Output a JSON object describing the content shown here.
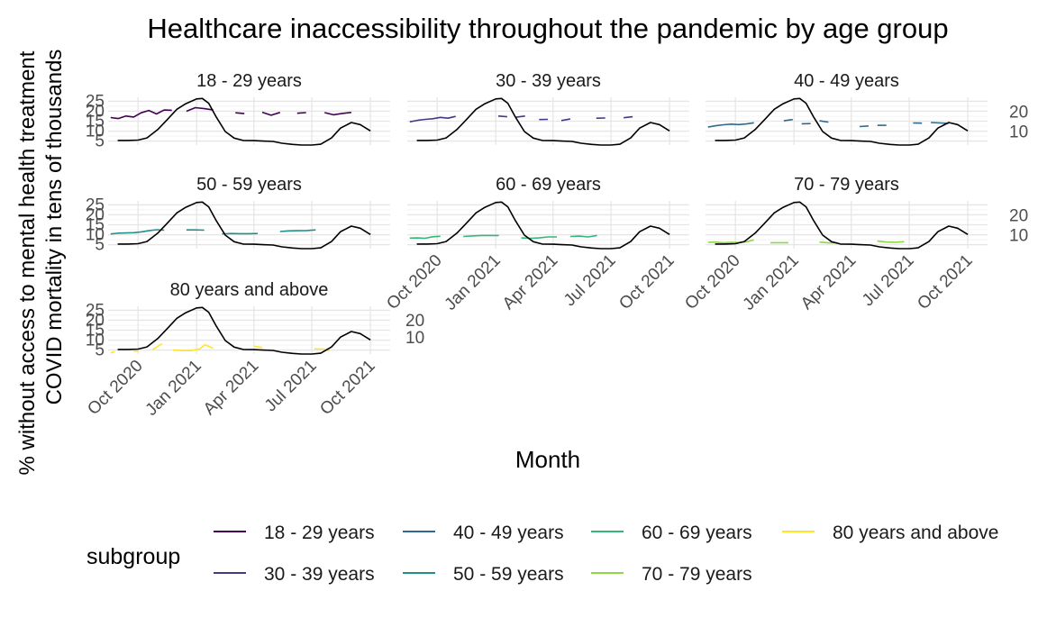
{
  "chart_data": {
    "type": "line",
    "title": "Healthcare inaccessibility throughout the pandemic by age group",
    "xlabel": "Month",
    "ylabel": "% without access to mental health treatment",
    "ylabel_secondary": "COVID mortality in tens of thousands",
    "x_ticks": [
      "Oct 2020",
      "Jan 2021",
      "Apr 2021",
      "Jul 2021",
      "Oct 2021"
    ],
    "y_ticks_left": [
      "5",
      "10",
      "15",
      "20",
      "25"
    ],
    "y_ticks_right": [
      "10",
      "20"
    ],
    "xlim": [
      "2020-08-15",
      "2021-11-01"
    ],
    "ylim": [
      3,
      27
    ],
    "legend_title": "subgroup",
    "legend_position": "bottom",
    "series": [
      {
        "name": "18 - 29 years",
        "color": "#440154",
        "segments": [
          [
            [
              "2020-08-19",
              16.8
            ],
            [
              "2020-08-31",
              16.3
            ],
            [
              "2020-09-12",
              17.6
            ],
            [
              "2020-09-24",
              17.1
            ],
            [
              "2020-10-06",
              19.2
            ],
            [
              "2020-10-18",
              20.4
            ],
            [
              "2020-10-30",
              18.6
            ],
            [
              "2020-11-11",
              20.6
            ],
            [
              "2020-11-23",
              20.5
            ]
          ],
          [
            [
              "2020-12-16",
              20.0
            ],
            [
              "2020-12-30",
              21.8
            ],
            [
              "2021-01-13",
              21.3
            ],
            [
              "2021-01-27",
              20.6
            ]
          ],
          [
            [
              "2021-03-03",
              19.2
            ],
            [
              "2021-03-17",
              18.8
            ]
          ],
          [
            [
              "2021-04-14",
              19.5
            ],
            [
              "2021-04-28",
              18.0
            ],
            [
              "2021-05-12",
              19.4
            ]
          ],
          [
            [
              "2021-06-08",
              19.0
            ],
            [
              "2021-06-22",
              19.3
            ]
          ],
          [
            [
              "2021-07-21",
              19.3
            ],
            [
              "2021-08-04",
              18.2
            ],
            [
              "2021-08-18",
              18.9
            ],
            [
              "2021-09-01",
              19.4
            ]
          ]
        ]
      },
      {
        "name": "30 - 39 years",
        "color": "#443983",
        "segments": [
          [
            [
              "2020-08-19",
              14.7
            ],
            [
              "2020-08-31",
              15.4
            ],
            [
              "2020-09-12",
              15.9
            ],
            [
              "2020-09-24",
              16.2
            ],
            [
              "2020-10-06",
              16.9
            ],
            [
              "2020-10-18",
              16.5
            ],
            [
              "2020-10-30",
              17.4
            ]
          ],
          [
            [
              "2021-01-05",
              17.6
            ],
            [
              "2021-01-19",
              17.2
            ]
          ],
          [
            [
              "2021-02-02",
              17.0
            ],
            [
              "2021-02-16",
              17.6
            ]
          ],
          [
            [
              "2021-03-10",
              15.8
            ],
            [
              "2021-03-24",
              15.9
            ]
          ],
          [
            [
              "2021-04-14",
              15.3
            ],
            [
              "2021-04-28",
              16.1
            ]
          ],
          [
            [
              "2021-06-08",
              16.5
            ],
            [
              "2021-06-22",
              16.6
            ]
          ],
          [
            [
              "2021-07-21",
              16.7
            ],
            [
              "2021-08-04",
              17.2
            ]
          ]
        ]
      },
      {
        "name": "40 - 49 years",
        "color": "#31688e",
        "segments": [
          [
            [
              "2020-08-19",
              12.0
            ],
            [
              "2020-08-31",
              12.7
            ],
            [
              "2020-09-12",
              13.2
            ],
            [
              "2020-09-24",
              13.5
            ],
            [
              "2020-10-06",
              13.3
            ],
            [
              "2020-10-18",
              13.6
            ],
            [
              "2020-10-30",
              14.2
            ]
          ],
          [
            [
              "2020-12-16",
              15.2
            ],
            [
              "2020-12-30",
              15.8
            ]
          ],
          [
            [
              "2021-01-13",
              13.7
            ],
            [
              "2021-01-27",
              13.8
            ]
          ],
          [
            [
              "2021-02-10",
              15.2
            ],
            [
              "2021-02-24",
              14.5
            ]
          ],
          [
            [
              "2021-04-14",
              12.3
            ],
            [
              "2021-04-28",
              12.6
            ]
          ],
          [
            [
              "2021-05-12",
              12.9
            ],
            [
              "2021-05-26",
              12.9
            ]
          ],
          [
            [
              "2021-07-07",
              14.1
            ],
            [
              "2021-07-21",
              14.0
            ]
          ],
          [
            [
              "2021-08-04",
              14.3
            ],
            [
              "2021-08-18",
              14.1
            ],
            [
              "2021-09-01",
              13.9
            ]
          ]
        ]
      },
      {
        "name": "50 - 59 years",
        "color": "#21908c",
        "segments": [
          [
            [
              "2020-08-19",
              10.4
            ],
            [
              "2020-08-31",
              10.8
            ],
            [
              "2020-09-12",
              10.9
            ],
            [
              "2020-09-24",
              11.0
            ],
            [
              "2020-10-06",
              11.4
            ],
            [
              "2020-10-18",
              12.0
            ],
            [
              "2020-10-30",
              12.5
            ],
            [
              "2020-11-11",
              12.3
            ]
          ],
          [
            [
              "2020-12-16",
              12.4
            ],
            [
              "2020-12-30",
              12.4
            ],
            [
              "2021-01-13",
              12.3
            ]
          ],
          [
            [
              "2021-02-10",
              10.4
            ],
            [
              "2021-02-24",
              10.6
            ],
            [
              "2021-03-10",
              10.5
            ],
            [
              "2021-03-24",
              10.5
            ],
            [
              "2021-04-07",
              10.6
            ]
          ],
          [
            [
              "2021-05-12",
              11.6
            ],
            [
              "2021-05-26",
              11.9
            ],
            [
              "2021-06-09",
              12.0
            ],
            [
              "2021-06-23",
              12.1
            ],
            [
              "2021-07-07",
              12.4
            ]
          ]
        ]
      },
      {
        "name": "60 - 69 years",
        "color": "#35b779",
        "segments": [
          [
            [
              "2020-08-19",
              8.3
            ],
            [
              "2020-08-31",
              8.4
            ],
            [
              "2020-09-12",
              8.2
            ],
            [
              "2020-09-24",
              9.0
            ],
            [
              "2020-10-06",
              9.2
            ]
          ],
          [
            [
              "2020-11-11",
              9.1
            ],
            [
              "2020-11-25",
              9.4
            ],
            [
              "2020-12-09",
              9.6
            ],
            [
              "2020-12-23",
              9.6
            ],
            [
              "2021-01-06",
              9.6
            ]
          ],
          [
            [
              "2021-02-10",
              8.4
            ],
            [
              "2021-02-24",
              8.2
            ],
            [
              "2021-03-10",
              8.4
            ],
            [
              "2021-03-24",
              8.9
            ],
            [
              "2021-04-07",
              8.9
            ]
          ],
          [
            [
              "2021-04-28",
              9.1
            ],
            [
              "2021-05-12",
              9.3
            ],
            [
              "2021-05-26",
              8.9
            ],
            [
              "2021-06-09",
              9.6
            ]
          ]
        ]
      },
      {
        "name": "70 - 79 years",
        "color": "#8fd744",
        "segments": [
          [
            [
              "2020-08-19",
              6.2
            ],
            [
              "2020-08-31",
              6.3
            ],
            [
              "2020-09-12",
              6.0
            ],
            [
              "2020-09-24",
              6.2
            ],
            [
              "2020-10-06",
              6.1
            ],
            [
              "2020-10-18",
              6.4
            ],
            [
              "2020-10-30",
              7.4
            ]
          ],
          [
            [
              "2020-11-25",
              6.0
            ],
            [
              "2020-12-09",
              6.0
            ],
            [
              "2020-12-23",
              6.0
            ]
          ],
          [
            [
              "2021-02-10",
              6.3
            ],
            [
              "2021-02-24",
              5.9
            ],
            [
              "2021-03-10",
              6.0
            ]
          ],
          [
            [
              "2021-05-12",
              6.8
            ],
            [
              "2021-05-26",
              6.3
            ],
            [
              "2021-06-09",
              6.2
            ],
            [
              "2021-06-23",
              6.5
            ]
          ]
        ]
      },
      {
        "name": "80 years and above",
        "color": "#fde725",
        "segments": [
          [
            [
              "2020-08-19",
              3.5
            ],
            [
              "2020-08-25",
              4.2
            ]
          ],
          [
            [
              "2020-09-24",
              4.5
            ],
            [
              "2020-10-02",
              4.5
            ]
          ],
          [
            [
              "2020-10-24",
              5.3
            ],
            [
              "2020-11-08",
              8.2
            ]
          ],
          [
            [
              "2020-11-25",
              5.0
            ],
            [
              "2020-12-09",
              4.7
            ],
            [
              "2020-12-23",
              4.7
            ],
            [
              "2021-01-06",
              5.6
            ],
            [
              "2021-01-14",
              7.6
            ],
            [
              "2021-01-27",
              6.0
            ]
          ],
          [
            [
              "2021-04-02",
              6.8
            ],
            [
              "2021-04-14",
              6.3
            ]
          ],
          [
            [
              "2021-07-05",
              5.6
            ],
            [
              "2021-07-19",
              5.5
            ],
            [
              "2021-07-29",
              4.6
            ]
          ]
        ]
      }
    ],
    "mortality_series": {
      "name": "COVID mortality",
      "color": "#000000",
      "points": [
        [
          "2020-08-30",
          5.3
        ],
        [
          "2020-09-15",
          5.3
        ],
        [
          "2020-10-01",
          5.5
        ],
        [
          "2020-10-15",
          6.6
        ],
        [
          "2020-11-01",
          10.8
        ],
        [
          "2020-11-15",
          15.5
        ],
        [
          "2020-12-01",
          21.0
        ],
        [
          "2020-12-15",
          23.8
        ],
        [
          "2021-01-01",
          26.2
        ],
        [
          "2021-01-10",
          26.4
        ],
        [
          "2021-01-20",
          24.0
        ],
        [
          "2021-02-01",
          17.0
        ],
        [
          "2021-02-15",
          9.8
        ],
        [
          "2021-03-01",
          6.5
        ],
        [
          "2021-03-15",
          5.3
        ],
        [
          "2021-04-01",
          5.2
        ],
        [
          "2021-04-15",
          5.0
        ],
        [
          "2021-05-01",
          4.8
        ],
        [
          "2021-05-15",
          3.9
        ],
        [
          "2021-06-01",
          3.3
        ],
        [
          "2021-06-15",
          3.0
        ],
        [
          "2021-07-01",
          3.0
        ],
        [
          "2021-07-15",
          3.4
        ],
        [
          "2021-08-01",
          6.6
        ],
        [
          "2021-08-15",
          11.5
        ],
        [
          "2021-09-01",
          14.3
        ],
        [
          "2021-09-15",
          13.3
        ],
        [
          "2021-10-01",
          10.1
        ]
      ]
    }
  }
}
